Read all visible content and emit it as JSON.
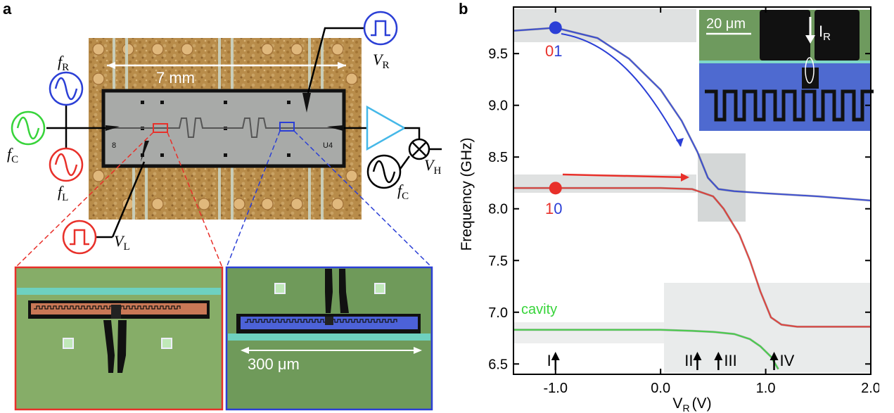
{
  "panel_a": {
    "label": "a",
    "chip_width_label": "7 mm",
    "scale_300": "300 μm",
    "sources": {
      "fR": {
        "sym": "f",
        "sub": "R"
      },
      "fC_left": {
        "sym": "f",
        "sub": "C"
      },
      "fL": {
        "sym": "f",
        "sub": "L"
      },
      "fC_right": {
        "sym": "f",
        "sub": "C"
      },
      "VR": {
        "sym": "V",
        "sub": "R"
      },
      "VL": {
        "sym": "V",
        "sub": "L"
      },
      "VH": {
        "sym": "V",
        "sub": "H"
      }
    },
    "chip_marks": {
      "left": "8",
      "right": "U4"
    },
    "colors": {
      "red": "#e8302a",
      "blue": "#2b3fd6",
      "green": "#37d43a",
      "cyan": "#45b8e8"
    }
  },
  "panel_b": {
    "label": "b",
    "inset_scale": "20 μm",
    "inset_current": {
      "sym": "I",
      "sub": "R"
    },
    "state_01": {
      "first": "0",
      "second": "1"
    },
    "state_10": {
      "first": "1",
      "second": "0"
    },
    "cavity_label": "cavity",
    "arrow_labels": [
      "I",
      "II",
      "III",
      "IV"
    ]
  },
  "chart_data": {
    "type": "line",
    "title": "",
    "xlabel": {
      "main": "V",
      "sub": "R",
      "unit": "(V)"
    },
    "ylabel": "Frequency (GHz)",
    "xlim": [
      -1.4,
      2.0
    ],
    "ylim": [
      6.4,
      9.95
    ],
    "xticks": [
      -1.0,
      0.0,
      1.0,
      2.0
    ],
    "xtick_labels": [
      "-1.0",
      "0.0",
      "1.0",
      "2.0"
    ],
    "yticks": [
      6.5,
      7.0,
      7.5,
      8.0,
      8.5,
      9.0,
      9.5
    ],
    "ytick_labels": [
      "6.5",
      "7.0",
      "7.5",
      "8.0",
      "8.5",
      "9.0",
      "9.5"
    ],
    "series": [
      {
        "name": "01",
        "color": "#2b3fd6",
        "x": [
          -1.4,
          -1.0,
          -0.6,
          -0.3,
          0.0,
          0.2,
          0.35,
          0.45,
          0.55,
          0.7,
          1.0,
          1.5,
          2.0
        ],
        "y": [
          9.72,
          9.75,
          9.65,
          9.45,
          9.15,
          8.85,
          8.55,
          8.3,
          8.19,
          8.17,
          8.15,
          8.12,
          8.08
        ]
      },
      {
        "name": "10",
        "color": "#e8302a",
        "x": [
          -1.4,
          -1.0,
          0.0,
          0.3,
          0.5,
          0.6,
          0.75,
          0.85,
          0.95,
          1.05,
          1.15,
          1.3,
          1.5,
          2.0
        ],
        "y": [
          8.2,
          8.2,
          8.2,
          8.19,
          8.12,
          8.0,
          7.75,
          7.5,
          7.2,
          6.95,
          6.88,
          6.86,
          6.86,
          6.86
        ]
      },
      {
        "name": "cavity",
        "color": "#37d43a",
        "x": [
          -1.4,
          -1.0,
          0.0,
          0.3,
          0.5,
          0.7,
          0.85,
          0.95,
          1.05,
          1.12
        ],
        "y": [
          6.83,
          6.83,
          6.83,
          6.82,
          6.81,
          6.79,
          6.74,
          6.67,
          6.57,
          6.45
        ]
      }
    ],
    "markers": [
      {
        "label": "01",
        "x": -1.0,
        "y": 9.75,
        "color": "#2b3fd6"
      },
      {
        "label": "10",
        "x": -1.0,
        "y": 8.2,
        "color": "#e8302a"
      }
    ],
    "arrow_positions": [
      {
        "label": "I",
        "x": -1.0
      },
      {
        "label": "II",
        "x": 0.35
      },
      {
        "label": "III",
        "x": 0.55
      },
      {
        "label": "IV",
        "x": 1.08
      }
    ]
  }
}
